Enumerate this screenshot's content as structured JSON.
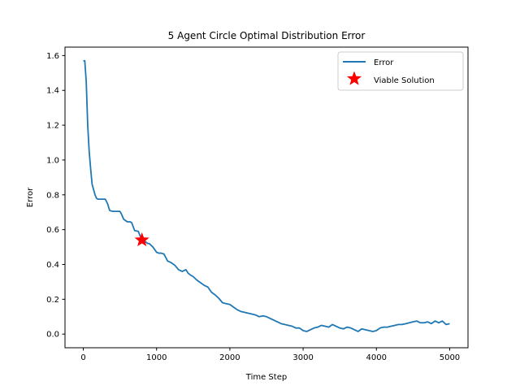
{
  "chart_data": {
    "type": "line",
    "title": "5 Agent Circle Optimal Distribution Error",
    "xlabel": "Time Step",
    "ylabel": "Error",
    "xlim": [
      -250,
      5250
    ],
    "ylim": [
      -0.0785,
      1.6485
    ],
    "xticks": [
      0,
      1000,
      2000,
      3000,
      4000,
      5000
    ],
    "yticks": [
      0.0,
      0.2,
      0.4,
      0.6,
      0.8,
      1.0,
      1.2,
      1.4,
      1.6
    ],
    "xtick_labels": [
      "0",
      "1000",
      "2000",
      "3000",
      "4000",
      "5000"
    ],
    "ytick_labels": [
      "0.0",
      "0.2",
      "0.4",
      "0.6",
      "0.8",
      "1.0",
      "1.2",
      "1.4",
      "1.6"
    ],
    "grid": false,
    "legend_position": "upper right",
    "series": [
      {
        "name": "Error",
        "color": "#1f77b4",
        "x": [
          0,
          20,
          40,
          60,
          80,
          100,
          120,
          140,
          160,
          180,
          200,
          220,
          250,
          300,
          330,
          360,
          400,
          450,
          500,
          520,
          550,
          600,
          640,
          660,
          700,
          750,
          800,
          850,
          880,
          900,
          950,
          1000,
          1030,
          1060,
          1100,
          1150,
          1200,
          1250,
          1300,
          1350,
          1400,
          1430,
          1460,
          1500,
          1550,
          1600,
          1650,
          1700,
          1750,
          1800,
          1850,
          1900,
          1950,
          2000,
          2050,
          2100,
          2150,
          2200,
          2250,
          2300,
          2350,
          2400,
          2450,
          2500,
          2550,
          2600,
          2650,
          2700,
          2750,
          2800,
          2850,
          2900,
          2950,
          3000,
          3050,
          3100,
          3150,
          3200,
          3250,
          3300,
          3350,
          3400,
          3450,
          3500,
          3550,
          3600,
          3650,
          3700,
          3750,
          3800,
          3850,
          3900,
          3950,
          4000,
          4050,
          4100,
          4150,
          4200,
          4250,
          4300,
          4350,
          4400,
          4450,
          4500,
          4550,
          4600,
          4650,
          4700,
          4750,
          4800,
          4850,
          4900,
          4950,
          5000
        ],
        "values": [
          1.57,
          1.57,
          1.45,
          1.2,
          1.05,
          0.95,
          0.86,
          0.83,
          0.8,
          0.78,
          0.775,
          0.775,
          0.775,
          0.775,
          0.75,
          0.71,
          0.705,
          0.705,
          0.705,
          0.69,
          0.66,
          0.645,
          0.645,
          0.64,
          0.595,
          0.59,
          0.54,
          0.53,
          0.52,
          0.52,
          0.5,
          0.47,
          0.465,
          0.465,
          0.46,
          0.42,
          0.41,
          0.395,
          0.37,
          0.36,
          0.37,
          0.35,
          0.34,
          0.33,
          0.31,
          0.295,
          0.28,
          0.27,
          0.24,
          0.225,
          0.205,
          0.18,
          0.175,
          0.17,
          0.155,
          0.14,
          0.13,
          0.125,
          0.12,
          0.115,
          0.11,
          0.1,
          0.105,
          0.1,
          0.09,
          0.08,
          0.07,
          0.06,
          0.055,
          0.05,
          0.045,
          0.035,
          0.035,
          0.02,
          0.015,
          0.025,
          0.035,
          0.04,
          0.05,
          0.045,
          0.04,
          0.055,
          0.045,
          0.035,
          0.03,
          0.04,
          0.035,
          0.025,
          0.015,
          0.03,
          0.025,
          0.02,
          0.015,
          0.02,
          0.035,
          0.04,
          0.04,
          0.045,
          0.05,
          0.055,
          0.055,
          0.06,
          0.065,
          0.07,
          0.075,
          0.065,
          0.065,
          0.07,
          0.06,
          0.075,
          0.065,
          0.075,
          0.055,
          0.06
        ]
      },
      {
        "name": "Viable Solution",
        "type": "scatter",
        "marker": "star",
        "color": "#ff0000",
        "x": [
          800
        ],
        "values": [
          0.54
        ]
      }
    ]
  }
}
